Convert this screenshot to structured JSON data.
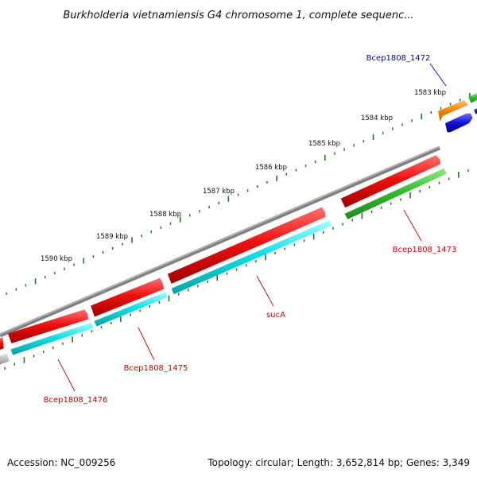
{
  "title": "Burkholderia vietnamiensis G4 chromosome 1, complete sequenc...",
  "footer": {
    "accession": "Accession: NC_009256",
    "summary": "Topology: circular; Length: 3,652,814 bp; Genes: 3,349"
  },
  "ticks": [
    {
      "label": "1583 kbp"
    },
    {
      "label": "1584 kbp"
    },
    {
      "label": "1585 kbp"
    },
    {
      "label": "1586 kbp"
    },
    {
      "label": "1587 kbp"
    },
    {
      "label": "1588 kbp"
    },
    {
      "label": "1589 kbp"
    },
    {
      "label": "1590 kbp"
    }
  ],
  "genes": [
    {
      "label": "Bcep1808_1472",
      "label_color": "#0000cc"
    },
    {
      "label": "Bcep1808_1473",
      "label_color": "#cc0000"
    },
    {
      "label": "sucA",
      "label_color": "#cc0000"
    },
    {
      "label": "Bcep1808_1475",
      "label_color": "#cc0000"
    },
    {
      "label": "Bcep1808_1476",
      "label_color": "#cc0000"
    }
  ],
  "colors": {
    "backbone": "#888888",
    "tick": "#1f7a1f",
    "cds_red": "#ee1111",
    "cds_cyan": "#11e0e8",
    "cds_green": "#33bb33",
    "cds_orange": "#ee8800",
    "cds_blue": "#1111dd",
    "cds_grey": "#bbbbbb"
  }
}
